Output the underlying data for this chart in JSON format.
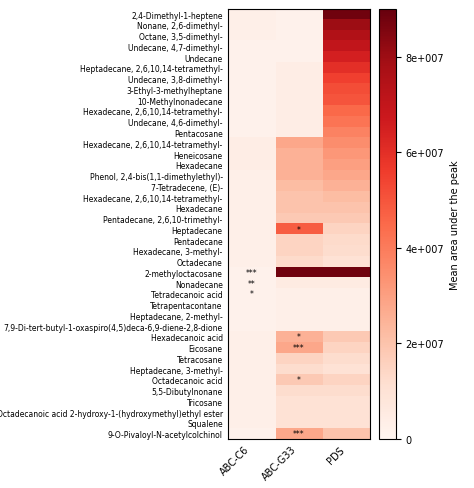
{
  "rows": [
    "2,4-Dimethyl-1-heptene",
    "Nonane, 2,6-dimethyl-",
    "Octane, 3,5-dimethyl-",
    "Undecane, 4,7-dimethyl-",
    "Undecane",
    "Heptadecane, 2,6,10,14-tetramethyl-",
    "Undecane, 3,8-dimethyl-",
    "3-Ethyl-3-methylheptane",
    "10-Methylnonadecane",
    "Hexadecane, 2,6,10,14-tetramethyl-",
    "Undecane, 4,6-dimethyl-",
    "Pentacosane",
    "Hexadecane, 2,6,10,14-tetramethyl-",
    "Heneicosane",
    "Hexadecane",
    "Phenol, 2,4-bis(1,1-dimethylethyl)-",
    "7-Tetradecene, (E)-",
    "Hexadecane, 2,6,10,14-tetramethyl-",
    "Hexadecane",
    "Pentadecane, 2,6,10-trimethyl-",
    "Heptadecane",
    "Pentadecane",
    "Hexadecane, 3-methyl-",
    "Octadecane",
    "2-methyloctacosane",
    "Nonadecane",
    "Tetradecanoic acid",
    "Tetrapentacontane",
    "Heptadecane, 2-methyl-",
    "7,9-Di-tert-butyl-1-oxaspiro(4,5)deca-6,9-diene-2,8-dione",
    "Hexadecanoic acid",
    "Eicosane",
    "Tetracosane",
    "Heptadecane, 3-methyl-",
    "Octadecanoic acid",
    "5,5-Dibutylnonane",
    "Tricosane",
    "Octadecanoic acid 2-hydroxy-1-(hydroxymethyl)ethyl ester",
    "Squalene",
    "9-O-Pivaloyl-N-acetylcolchinol"
  ],
  "cols": [
    "ABC-C6",
    "ABC-G33",
    "PDS"
  ],
  "matrix": [
    [
      0.3,
      0.2,
      8.8
    ],
    [
      0.3,
      0.2,
      8.0
    ],
    [
      0.3,
      0.2,
      7.5
    ],
    [
      0.2,
      0.2,
      7.0
    ],
    [
      0.2,
      0.2,
      6.5
    ],
    [
      0.2,
      0.4,
      6.0
    ],
    [
      0.2,
      0.4,
      5.5
    ],
    [
      0.2,
      0.4,
      5.2
    ],
    [
      0.2,
      0.4,
      5.0
    ],
    [
      0.2,
      0.4,
      4.5
    ],
    [
      0.2,
      0.4,
      4.2
    ],
    [
      0.2,
      0.4,
      3.8
    ],
    [
      0.4,
      2.8,
      3.5
    ],
    [
      0.4,
      2.5,
      3.2
    ],
    [
      0.4,
      2.5,
      3.0
    ],
    [
      0.3,
      2.5,
      2.8
    ],
    [
      0.3,
      2.2,
      2.5
    ],
    [
      0.3,
      2.0,
      2.2
    ],
    [
      0.3,
      2.0,
      2.0
    ],
    [
      0.3,
      1.8,
      1.8
    ],
    [
      0.3,
      4.8,
      1.5
    ],
    [
      0.3,
      1.5,
      1.3
    ],
    [
      0.3,
      1.5,
      1.2
    ],
    [
      0.3,
      1.3,
      1.0
    ],
    [
      0.2,
      8.8,
      8.8
    ],
    [
      0.2,
      0.5,
      0.5
    ],
    [
      0.2,
      0.3,
      0.3
    ],
    [
      0.2,
      0.3,
      0.3
    ],
    [
      0.2,
      0.3,
      0.3
    ],
    [
      0.2,
      0.3,
      0.3
    ],
    [
      0.3,
      2.5,
      1.8
    ],
    [
      0.3,
      2.8,
      1.5
    ],
    [
      0.3,
      1.5,
      1.2
    ],
    [
      0.3,
      1.2,
      1.0
    ],
    [
      0.3,
      1.8,
      1.5
    ],
    [
      0.3,
      1.2,
      1.2
    ],
    [
      0.3,
      1.0,
      1.0
    ],
    [
      0.3,
      1.0,
      1.0
    ],
    [
      0.3,
      1.0,
      1.0
    ],
    [
      0.2,
      2.8,
      2.0
    ]
  ],
  "scale": 10000000.0,
  "vmin": 0,
  "vmax": 90000000.0,
  "cmap": "Reds",
  "colorbar_label": "Mean area under the peak",
  "colorbar_ticks": [
    0,
    20000000.0,
    40000000.0,
    60000000.0,
    80000000.0
  ],
  "colorbar_ticklabels": [
    "0",
    "2e+007",
    "4e+007",
    "6e+007",
    "8e+007"
  ],
  "annotations": [
    [
      20,
      1,
      "*"
    ],
    [
      24,
      0,
      "***"
    ],
    [
      25,
      0,
      "**"
    ],
    [
      26,
      0,
      "*"
    ],
    [
      30,
      1,
      "*"
    ],
    [
      31,
      1,
      "***"
    ],
    [
      34,
      1,
      "*"
    ],
    [
      39,
      1,
      "***"
    ]
  ],
  "row_fontsize": 5.5,
  "col_fontsize": 7,
  "cbar_fontsize": 7,
  "fig_width": 4.74,
  "fig_height": 4.89,
  "dpi": 100
}
